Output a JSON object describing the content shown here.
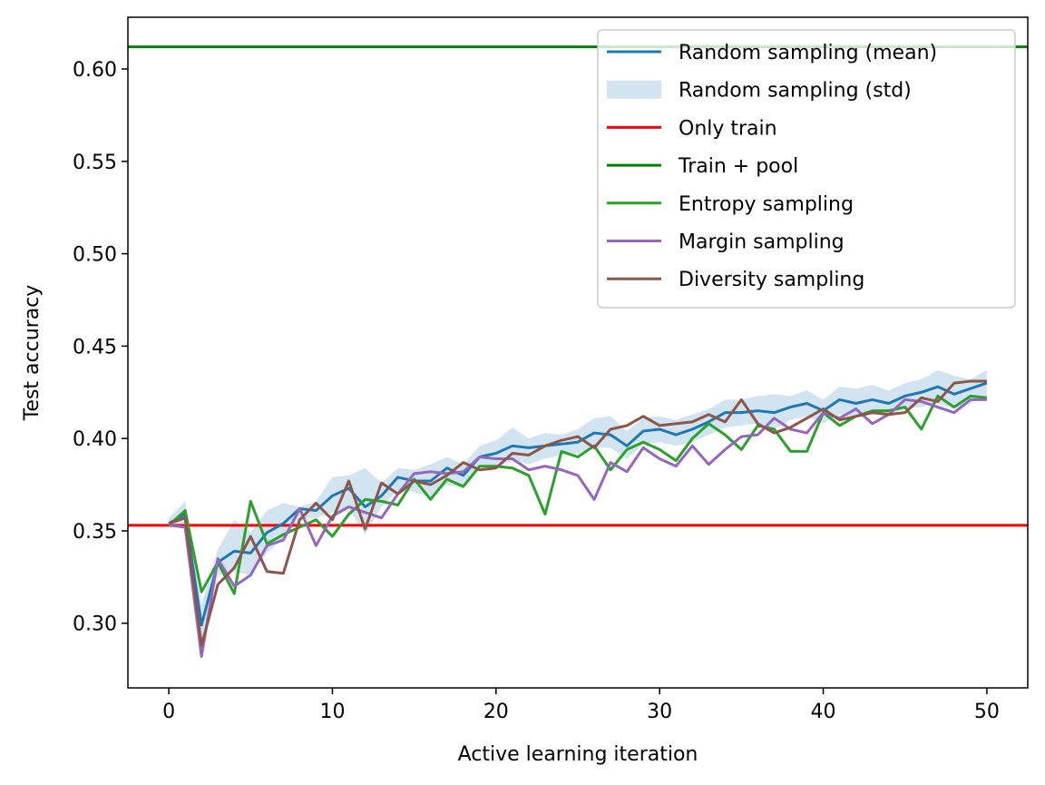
{
  "chart_data": {
    "type": "line",
    "title": "",
    "xlabel": "Active learning iteration",
    "ylabel": "Test accuracy",
    "xlim": [
      -2.5,
      52.5
    ],
    "ylim": [
      0.265,
      0.628
    ],
    "xticks": [
      0,
      10,
      20,
      30,
      40,
      50
    ],
    "yticks": [
      0.3,
      0.35,
      0.4,
      0.45,
      0.5,
      0.55,
      0.6
    ],
    "xtick_labels": [
      "0",
      "10",
      "20",
      "30",
      "40",
      "50"
    ],
    "ytick_labels": [
      "0.30",
      "0.35",
      "0.40",
      "0.45",
      "0.50",
      "0.55",
      "0.60"
    ],
    "grid": false,
    "legend_position": "upper-right",
    "x": [
      0,
      1,
      2,
      3,
      4,
      5,
      6,
      7,
      8,
      9,
      10,
      11,
      12,
      13,
      14,
      15,
      16,
      17,
      18,
      19,
      20,
      21,
      22,
      23,
      24,
      25,
      26,
      27,
      28,
      29,
      30,
      31,
      32,
      33,
      34,
      35,
      36,
      37,
      38,
      39,
      40,
      41,
      42,
      43,
      44,
      45,
      46,
      47,
      48,
      49,
      50
    ],
    "series": [
      {
        "name": "Random sampling (mean)",
        "color": "#1f77b4",
        "kind": "line",
        "values": [
          0.354,
          0.359,
          0.299,
          0.333,
          0.339,
          0.338,
          0.349,
          0.354,
          0.362,
          0.361,
          0.369,
          0.373,
          0.363,
          0.369,
          0.379,
          0.377,
          0.377,
          0.384,
          0.38,
          0.39,
          0.392,
          0.396,
          0.395,
          0.396,
          0.397,
          0.398,
          0.403,
          0.402,
          0.396,
          0.404,
          0.405,
          0.402,
          0.405,
          0.409,
          0.414,
          0.414,
          0.415,
          0.414,
          0.417,
          0.419,
          0.415,
          0.421,
          0.419,
          0.421,
          0.419,
          0.423,
          0.425,
          0.428,
          0.424,
          0.427,
          0.43
        ]
      },
      {
        "name": "Random sampling (std)",
        "color": "#1f77b4",
        "kind": "band",
        "lower": [
          0.352,
          0.354,
          0.288,
          0.326,
          0.328,
          0.326,
          0.338,
          0.346,
          0.356,
          0.357,
          0.36,
          0.362,
          0.348,
          0.363,
          0.372,
          0.371,
          0.368,
          0.375,
          0.373,
          0.384,
          0.385,
          0.388,
          0.386,
          0.389,
          0.391,
          0.392,
          0.395,
          0.395,
          0.389,
          0.397,
          0.398,
          0.396,
          0.398,
          0.402,
          0.406,
          0.407,
          0.408,
          0.405,
          0.41,
          0.412,
          0.408,
          0.413,
          0.412,
          0.413,
          0.413,
          0.416,
          0.417,
          0.419,
          0.416,
          0.419,
          0.423
        ],
        "upper": [
          0.357,
          0.366,
          0.31,
          0.34,
          0.356,
          0.349,
          0.361,
          0.365,
          0.363,
          0.366,
          0.379,
          0.38,
          0.384,
          0.376,
          0.384,
          0.383,
          0.386,
          0.39,
          0.386,
          0.396,
          0.399,
          0.406,
          0.4,
          0.403,
          0.402,
          0.405,
          0.411,
          0.412,
          0.404,
          0.411,
          0.412,
          0.41,
          0.413,
          0.416,
          0.421,
          0.421,
          0.423,
          0.424,
          0.423,
          0.426,
          0.421,
          0.428,
          0.427,
          0.429,
          0.426,
          0.43,
          0.432,
          0.437,
          0.434,
          0.432,
          0.437
        ]
      },
      {
        "name": "Only train",
        "color": "#ff0000",
        "kind": "hline",
        "y": 0.353
      },
      {
        "name": "Train + pool",
        "color": "#008000",
        "kind": "hline",
        "y": 0.612
      },
      {
        "name": "Entropy sampling",
        "color": "#2ca02c",
        "kind": "line",
        "values": [
          0.353,
          0.361,
          0.317,
          0.333,
          0.316,
          0.366,
          0.343,
          0.348,
          0.352,
          0.356,
          0.347,
          0.359,
          0.367,
          0.366,
          0.364,
          0.378,
          0.367,
          0.378,
          0.374,
          0.385,
          0.385,
          0.384,
          0.38,
          0.359,
          0.393,
          0.39,
          0.396,
          0.383,
          0.394,
          0.398,
          0.394,
          0.388,
          0.4,
          0.408,
          0.402,
          0.394,
          0.407,
          0.405,
          0.393,
          0.393,
          0.414,
          0.407,
          0.412,
          0.415,
          0.415,
          0.417,
          0.405,
          0.423,
          0.417,
          0.423,
          0.422
        ]
      },
      {
        "name": "Margin sampling",
        "color": "#9467bd",
        "kind": "line",
        "values": [
          0.353,
          0.352,
          0.282,
          0.335,
          0.32,
          0.326,
          0.342,
          0.345,
          0.362,
          0.342,
          0.358,
          0.363,
          0.36,
          0.357,
          0.37,
          0.381,
          0.382,
          0.381,
          0.382,
          0.39,
          0.389,
          0.389,
          0.383,
          0.385,
          0.383,
          0.38,
          0.367,
          0.387,
          0.382,
          0.395,
          0.389,
          0.385,
          0.396,
          0.386,
          0.394,
          0.401,
          0.402,
          0.411,
          0.405,
          0.403,
          0.414,
          0.411,
          0.416,
          0.408,
          0.413,
          0.421,
          0.42,
          0.417,
          0.414,
          0.421,
          0.421
        ]
      },
      {
        "name": "Diversity sampling",
        "color": "#8c564b",
        "kind": "line",
        "values": [
          0.354,
          0.357,
          0.288,
          0.321,
          0.33,
          0.347,
          0.328,
          0.327,
          0.356,
          0.365,
          0.356,
          0.377,
          0.351,
          0.376,
          0.37,
          0.377,
          0.375,
          0.38,
          0.387,
          0.383,
          0.384,
          0.392,
          0.391,
          0.396,
          0.399,
          0.401,
          0.395,
          0.405,
          0.407,
          0.412,
          0.407,
          0.408,
          0.409,
          0.413,
          0.409,
          0.421,
          0.408,
          0.403,
          0.406,
          0.411,
          0.416,
          0.41,
          0.412,
          0.414,
          0.413,
          0.414,
          0.422,
          0.42,
          0.43,
          0.431,
          0.431
        ]
      }
    ]
  }
}
